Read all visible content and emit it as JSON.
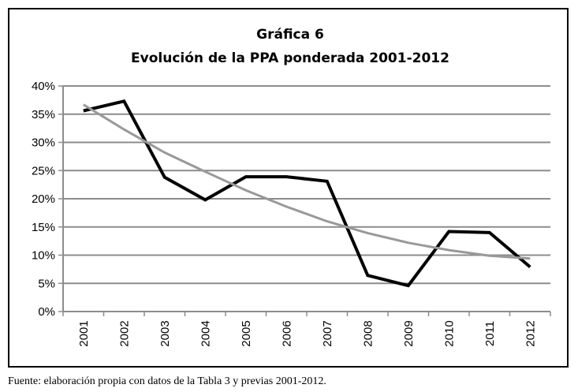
{
  "chart_data": {
    "type": "line",
    "title": "Gráfica 6",
    "subtitle": "Evolución de la PPA ponderada 2001-2012",
    "categories": [
      "2001",
      "2002",
      "2003",
      "2004",
      "2005",
      "2006",
      "2007",
      "2008",
      "2009",
      "2010",
      "2011",
      "2012"
    ],
    "series": [
      {
        "values": [
          35.6,
          37.3,
          23.8,
          19.8,
          23.9,
          23.9,
          23.1,
          6.4,
          4.6,
          14.2,
          14.0,
          7.9
        ],
        "color": "#000000"
      },
      {
        "values": [
          36.7,
          32.3,
          28.2,
          24.8,
          21.5,
          18.6,
          16.0,
          13.9,
          12.2,
          10.9,
          9.9,
          9.4
        ],
        "color": "#999999"
      }
    ],
    "ylim": [
      0,
      40
    ],
    "yticks": [
      "0%",
      "5%",
      "10%",
      "15%",
      "20%",
      "25%",
      "30%",
      "35%",
      "40%"
    ],
    "grid": true,
    "legend": "none"
  },
  "footnote": "Fuente: elaboración propia con datos de la Tabla 3 y previas 2001-2012."
}
